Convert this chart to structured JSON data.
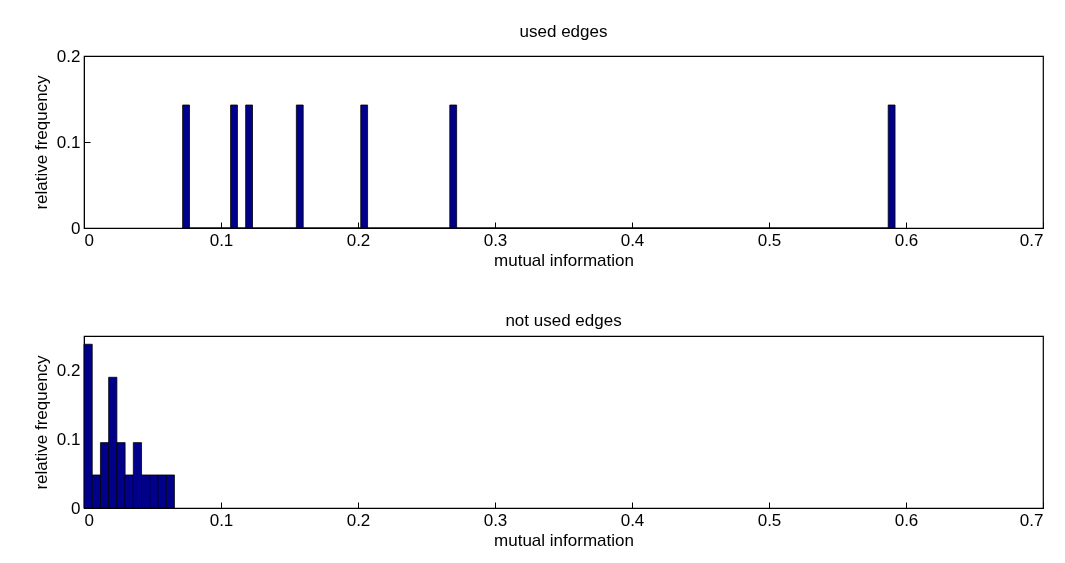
{
  "chart_data": [
    {
      "type": "histogram",
      "title": "used edges",
      "xlabel": "mutual information",
      "ylabel": "relative frequency",
      "color": "#00008b",
      "bins": [
        0.072,
        0.077,
        0.107,
        0.112,
        0.118,
        0.123,
        0.155,
        0.16,
        0.202,
        0.207,
        0.267,
        0.272,
        0.587,
        0.592
      ],
      "values": [
        0.143,
        0,
        0.143,
        0,
        0.143,
        0,
        0.143,
        0,
        0.143,
        0,
        0.143,
        0,
        0.143
      ],
      "xlim": [
        0,
        0.7
      ],
      "xticks": [
        0,
        0.1,
        0.2,
        0.3,
        0.4,
        0.5,
        0.6,
        0.7
      ],
      "ylim": [
        0,
        0.2
      ],
      "yticks": [
        0,
        0.1,
        0.2
      ],
      "grid": false
    },
    {
      "type": "histogram",
      "title": "not used edges",
      "xlabel": "mutual information",
      "ylabel": "relative frequency",
      "color": "#00008b",
      "bins": [
        0,
        0.006,
        0.012,
        0.018,
        0.024,
        0.03,
        0.036,
        0.042,
        0.048,
        0.054,
        0.06,
        0.066
      ],
      "values": [
        0.238,
        0.048,
        0.095,
        0.19,
        0.095,
        0.048,
        0.095,
        0.048,
        0.048,
        0.048,
        0.048
      ],
      "xlim": [
        0,
        0.7
      ],
      "xticks": [
        0,
        0.1,
        0.2,
        0.3,
        0.4,
        0.5,
        0.6,
        0.7
      ],
      "ylim": [
        0,
        0.25
      ],
      "yticks": [
        0,
        0.1,
        0.2
      ],
      "grid": false
    }
  ]
}
